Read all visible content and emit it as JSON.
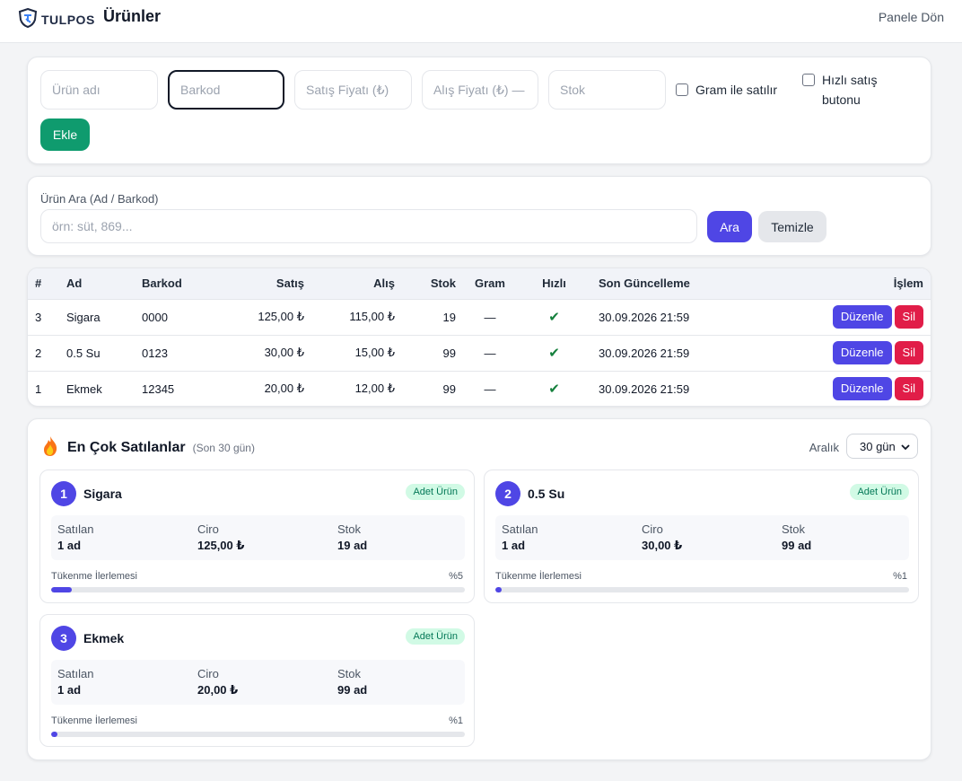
{
  "header": {
    "logo_text": "TULPOS",
    "title": "Ürünler",
    "back_link": "Panele Dön"
  },
  "add_form": {
    "name_placeholder": "Ürün adı",
    "barcode_placeholder": "Barkod",
    "sale_price_placeholder": "Satış Fiyatı (₺)",
    "purchase_price_placeholder": "Alış Fiyatı (₺) —",
    "stock_placeholder": "Stok",
    "gram_checkbox_label": "Gram ile satılır",
    "quick_checkbox_label": "Hızlı satış butonu",
    "add_button": "Ekle"
  },
  "search": {
    "label": "Ürün Ara (Ad / Barkod)",
    "placeholder": "örn: süt, 869...",
    "search_button": "Ara",
    "clear_button": "Temizle"
  },
  "table": {
    "headers": {
      "id": "#",
      "name": "Ad",
      "barcode": "Barkod",
      "sale": "Satış",
      "purchase": "Alış",
      "stock": "Stok",
      "gram": "Gram",
      "quick": "Hızlı",
      "updated": "Son Güncelleme",
      "action": "İşlem"
    },
    "rows": [
      {
        "id": "3",
        "name": "Sigara",
        "barcode": "0000",
        "sale": "125,00 ₺",
        "purchase": "115,00 ₺",
        "stock": "19",
        "gram": "—",
        "quick": "✔",
        "updated": "30.09.2026 21:59",
        "edit": "Düzenle",
        "delete": "Sil"
      },
      {
        "id": "2",
        "name": "0.5 Su",
        "barcode": "0123",
        "sale": "30,00 ₺",
        "purchase": "15,00 ₺",
        "stock": "99",
        "gram": "—",
        "quick": "✔",
        "updated": "30.09.2026 21:59",
        "edit": "Düzenle",
        "delete": "Sil"
      },
      {
        "id": "1",
        "name": "Ekmek",
        "barcode": "12345",
        "sale": "20,00 ₺",
        "purchase": "12,00 ₺",
        "stock": "99",
        "gram": "—",
        "quick": "✔",
        "updated": "30.09.2026 21:59",
        "edit": "Düzenle",
        "delete": "Sil"
      }
    ]
  },
  "best_sellers": {
    "icon": "fire-icon",
    "title": "En Çok Satılanlar",
    "subtitle": "(Son 30 gün)",
    "range_label": "Aralık",
    "range_value": "30 gün",
    "products": [
      {
        "rank": "1",
        "name": "Sigara",
        "badge": "Adet Ürün",
        "sold_label": "Satılan",
        "sold": "1 ad",
        "revenue_label": "Ciro",
        "revenue": "125,00 ₺",
        "stock_label": "Stok",
        "stock": "19 ad",
        "progress_label": "Tükenme İlerlemesi",
        "progress_text": "%5",
        "progress": 5
      },
      {
        "rank": "2",
        "name": "0.5 Su",
        "badge": "Adet Ürün",
        "sold_label": "Satılan",
        "sold": "1 ad",
        "revenue_label": "Ciro",
        "revenue": "30,00 ₺",
        "stock_label": "Stok",
        "stock": "99 ad",
        "progress_label": "Tükenme İlerlemesi",
        "progress_text": "%1",
        "progress": 1
      },
      {
        "rank": "3",
        "name": "Ekmek",
        "badge": "Adet Ürün",
        "sold_label": "Satılan",
        "sold": "1 ad",
        "revenue_label": "Ciro",
        "revenue": "20,00 ₺",
        "stock_label": "Stok",
        "stock": "99 ad",
        "progress_label": "Tükenme İlerlemesi",
        "progress_text": "%1",
        "progress": 1
      }
    ]
  },
  "colors": {
    "primary": "#4f46e5",
    "success": "#0f9b6e",
    "danger": "#e11d48",
    "check": "#15803d"
  }
}
